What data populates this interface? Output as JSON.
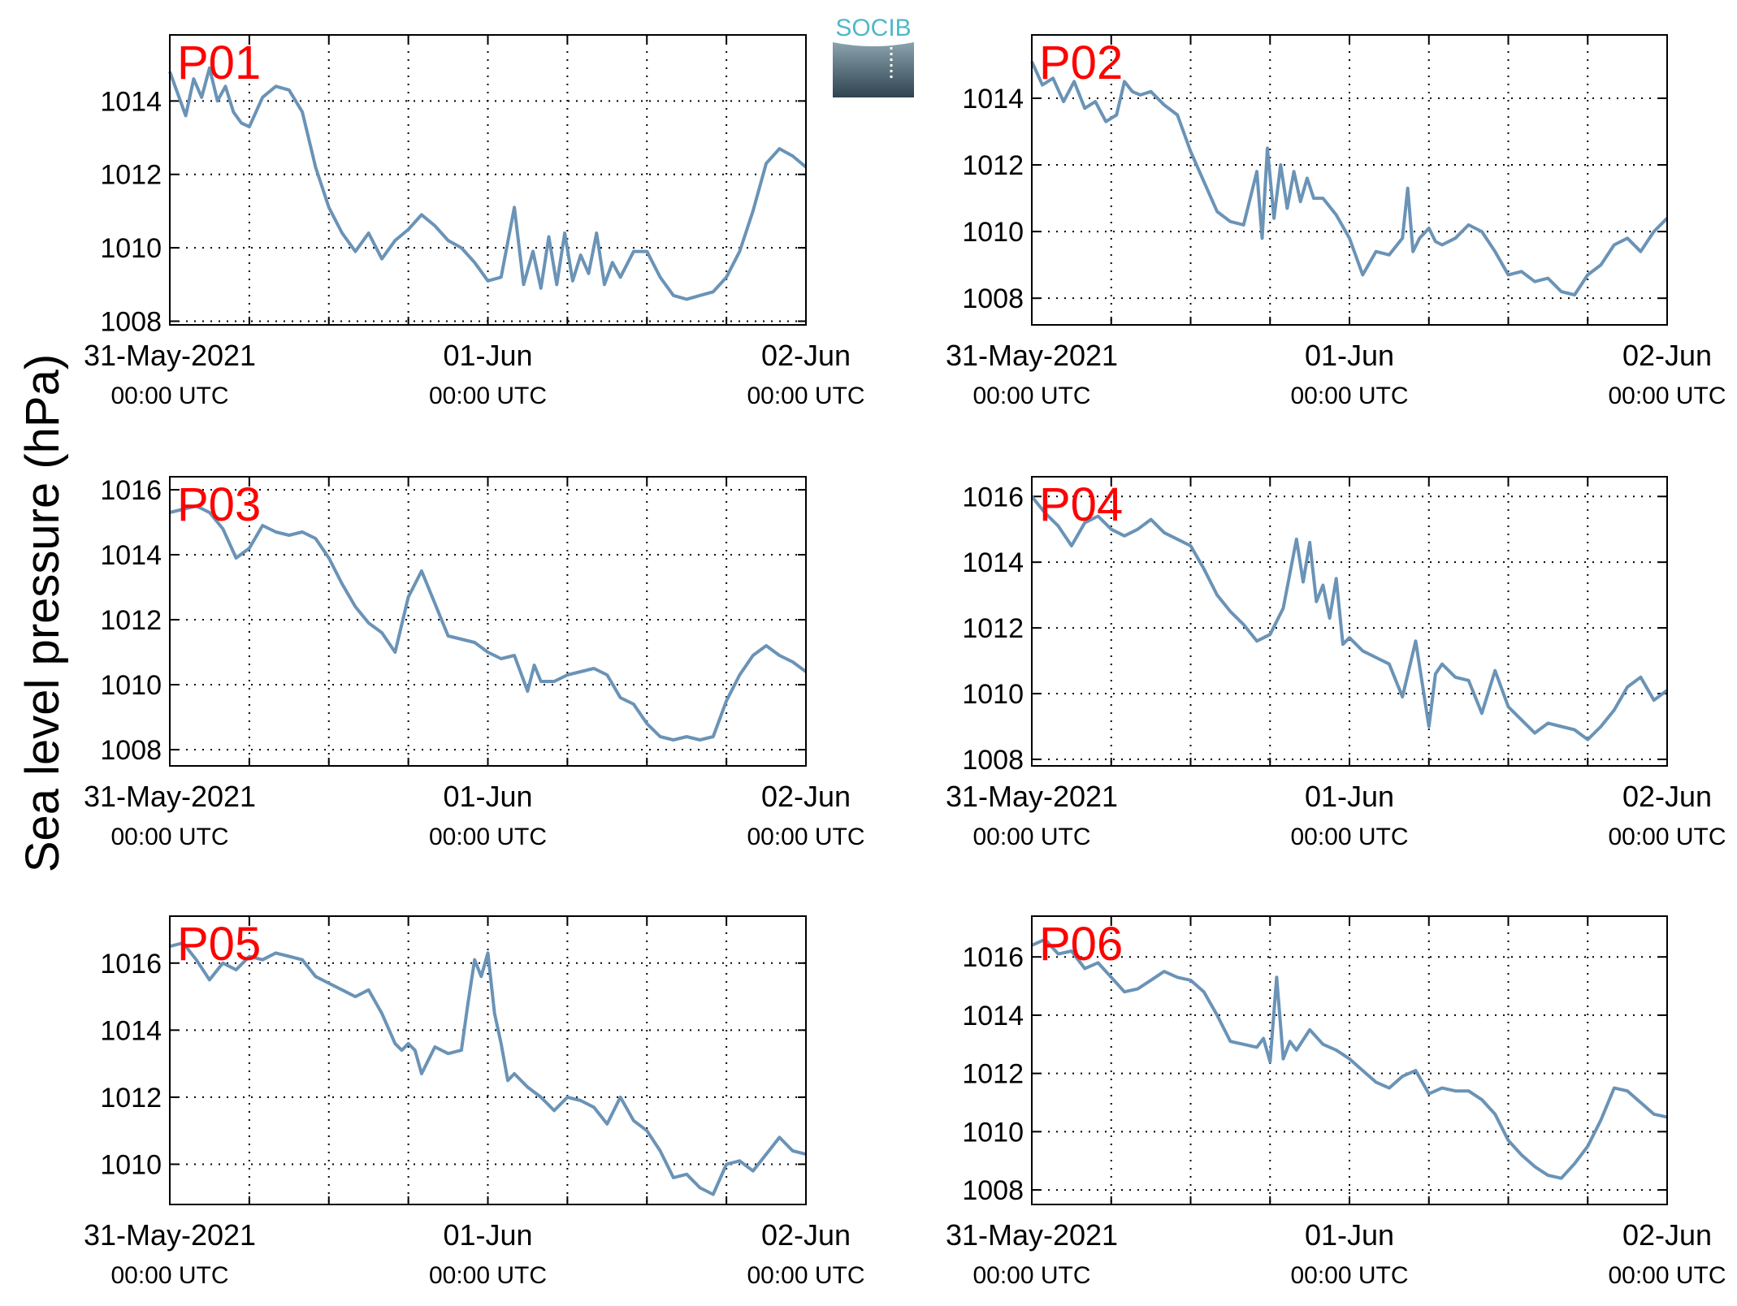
{
  "figure": {
    "ylabel": "Sea level pressure (hPa)",
    "logo_text": "SOCIB",
    "line_color": "#6a93b6",
    "panel_label_color": "#ff0000",
    "x_tick_labels": [
      {
        "top": "31-May-2021",
        "bottom": "00:00 UTC"
      },
      {
        "top": "01-Jun",
        "bottom": "00:00 UTC"
      },
      {
        "top": "02-Jun",
        "bottom": "00:00 UTC"
      }
    ]
  },
  "chart_data": [
    {
      "type": "line",
      "label": "P01",
      "xlim": [
        0,
        48
      ],
      "ylim": [
        1007.9,
        1015.8
      ],
      "yticks": [
        1008,
        1010,
        1012,
        1014
      ],
      "xticks_major": [
        0,
        24,
        48
      ],
      "xgrid": [
        6,
        12,
        18,
        30,
        36,
        42
      ],
      "grid": true,
      "x": [
        0,
        0.6,
        1.2,
        1.8,
        2.4,
        3,
        3.6,
        4.2,
        4.8,
        5.4,
        6,
        7,
        8,
        9,
        10,
        11,
        12,
        13,
        14,
        15,
        16,
        17,
        18,
        19,
        20,
        21,
        22,
        23,
        24,
        25,
        26,
        26.7,
        27.4,
        28,
        28.6,
        29.2,
        29.8,
        30.4,
        31,
        31.6,
        32.2,
        32.8,
        33.4,
        34,
        35,
        36,
        37,
        38,
        39,
        40,
        41,
        42,
        43,
        44,
        45,
        46,
        47,
        48
      ],
      "y": [
        1014.8,
        1014.2,
        1013.6,
        1014.6,
        1014.1,
        1014.9,
        1014.0,
        1014.4,
        1013.7,
        1013.4,
        1013.3,
        1014.1,
        1014.4,
        1014.3,
        1013.7,
        1012.2,
        1011.1,
        1010.4,
        1009.9,
        1010.4,
        1009.7,
        1010.2,
        1010.5,
        1010.9,
        1010.6,
        1010.2,
        1010.0,
        1009.6,
        1009.1,
        1009.2,
        1011.1,
        1009.0,
        1009.9,
        1008.9,
        1010.3,
        1009.0,
        1010.4,
        1009.1,
        1009.8,
        1009.3,
        1010.4,
        1009.0,
        1009.6,
        1009.2,
        1009.9,
        1009.9,
        1009.2,
        1008.7,
        1008.6,
        1008.7,
        1008.8,
        1009.2,
        1009.9,
        1011.0,
        1012.3,
        1012.7,
        1012.5,
        1012.2
      ]
    },
    {
      "type": "line",
      "label": "P02",
      "xlim": [
        0,
        48
      ],
      "ylim": [
        1007.2,
        1015.9
      ],
      "yticks": [
        1008,
        1010,
        1012,
        1014
      ],
      "xticks_major": [
        0,
        24,
        48
      ],
      "xgrid": [
        6,
        12,
        18,
        30,
        36,
        42
      ],
      "grid": true,
      "x": [
        0,
        0.8,
        1.6,
        2.4,
        3.2,
        4,
        4.8,
        5.6,
        6.4,
        7,
        7.6,
        8.2,
        9,
        10,
        11,
        12,
        13,
        14,
        15,
        16,
        17,
        17.4,
        17.8,
        18.3,
        18.8,
        19.3,
        19.8,
        20.3,
        20.8,
        21.3,
        22,
        23,
        24,
        25,
        26,
        27,
        28,
        28.4,
        28.8,
        29.3,
        30,
        30.5,
        31,
        32,
        33,
        34,
        35,
        36,
        37,
        38,
        39,
        40,
        41,
        42,
        43,
        44,
        45,
        46,
        47,
        48
      ],
      "y": [
        1015.1,
        1014.4,
        1014.6,
        1013.9,
        1014.5,
        1013.7,
        1013.9,
        1013.3,
        1013.5,
        1014.5,
        1014.2,
        1014.1,
        1014.2,
        1013.8,
        1013.5,
        1012.4,
        1011.5,
        1010.6,
        1010.3,
        1010.2,
        1011.8,
        1009.8,
        1012.5,
        1010.4,
        1012.0,
        1010.7,
        1011.8,
        1010.9,
        1011.6,
        1011.0,
        1011.0,
        1010.5,
        1009.8,
        1008.7,
        1009.4,
        1009.3,
        1009.8,
        1011.3,
        1009.4,
        1009.8,
        1010.1,
        1009.7,
        1009.6,
        1009.8,
        1010.2,
        1010.0,
        1009.4,
        1008.7,
        1008.8,
        1008.5,
        1008.6,
        1008.2,
        1008.1,
        1008.7,
        1009.0,
        1009.6,
        1009.8,
        1009.4,
        1010.0,
        1010.4
      ]
    },
    {
      "type": "line",
      "label": "P03",
      "xlim": [
        0,
        48
      ],
      "ylim": [
        1007.5,
        1016.4
      ],
      "yticks": [
        1008,
        1010,
        1012,
        1014,
        1016
      ],
      "xticks_major": [
        0,
        24,
        48
      ],
      "xgrid": [
        6,
        12,
        18,
        30,
        36,
        42
      ],
      "grid": true,
      "x": [
        0,
        1,
        2,
        3,
        4,
        5,
        6,
        7,
        8,
        9,
        10,
        11,
        12,
        13,
        14,
        15,
        16,
        17,
        18,
        18.5,
        19,
        20,
        21,
        22,
        23,
        24,
        25,
        26,
        27,
        27.5,
        28,
        29,
        30,
        31,
        32,
        33,
        34,
        35,
        36,
        37,
        38,
        39,
        40,
        41,
        42,
        43,
        44,
        45,
        46,
        47,
        48
      ],
      "y": [
        1015.3,
        1015.4,
        1015.5,
        1015.3,
        1014.8,
        1013.9,
        1014.2,
        1014.9,
        1014.7,
        1014.6,
        1014.7,
        1014.5,
        1013.9,
        1013.1,
        1012.4,
        1011.9,
        1011.6,
        1011.0,
        1012.7,
        1013.1,
        1013.5,
        1012.5,
        1011.5,
        1011.4,
        1011.3,
        1011.0,
        1010.8,
        1010.9,
        1009.8,
        1010.6,
        1010.1,
        1010.1,
        1010.3,
        1010.4,
        1010.5,
        1010.3,
        1009.6,
        1009.4,
        1008.8,
        1008.4,
        1008.3,
        1008.4,
        1008.3,
        1008.4,
        1009.5,
        1010.3,
        1010.9,
        1011.2,
        1010.9,
        1010.7,
        1010.4
      ]
    },
    {
      "type": "line",
      "label": "P04",
      "xlim": [
        0,
        48
      ],
      "ylim": [
        1007.8,
        1016.6
      ],
      "yticks": [
        1008,
        1010,
        1012,
        1014,
        1016
      ],
      "xticks_major": [
        0,
        24,
        48
      ],
      "xgrid": [
        6,
        12,
        18,
        30,
        36,
        42
      ],
      "grid": true,
      "x": [
        0,
        1,
        2,
        3,
        4,
        5,
        6,
        7,
        8,
        9,
        10,
        11,
        12,
        13,
        14,
        15,
        16,
        17,
        18,
        19,
        20,
        20.5,
        21,
        21.5,
        22,
        22.5,
        23,
        23.5,
        24,
        25,
        26,
        27,
        28,
        29,
        30,
        30.5,
        31,
        32,
        33,
        34,
        35,
        36,
        37,
        38,
        39,
        40,
        41,
        42,
        43,
        44,
        45,
        46,
        47,
        48
      ],
      "y": [
        1016.0,
        1015.5,
        1015.1,
        1014.5,
        1015.2,
        1015.4,
        1015.0,
        1014.8,
        1015.0,
        1015.3,
        1014.9,
        1014.7,
        1014.5,
        1013.8,
        1013.0,
        1012.5,
        1012.1,
        1011.6,
        1011.8,
        1012.6,
        1014.7,
        1013.4,
        1014.6,
        1012.8,
        1013.3,
        1012.3,
        1013.5,
        1011.5,
        1011.7,
        1011.3,
        1011.1,
        1010.9,
        1009.9,
        1011.6,
        1009.0,
        1010.6,
        1010.9,
        1010.5,
        1010.4,
        1009.4,
        1010.7,
        1009.6,
        1009.2,
        1008.8,
        1009.1,
        1009.0,
        1008.9,
        1008.6,
        1009.0,
        1009.5,
        1010.2,
        1010.5,
        1009.8,
        1010.1
      ]
    },
    {
      "type": "line",
      "label": "P05",
      "xlim": [
        0,
        48
      ],
      "ylim": [
        1008.8,
        1017.4
      ],
      "yticks": [
        1010,
        1012,
        1014,
        1016
      ],
      "xticks_major": [
        0,
        24,
        48
      ],
      "xgrid": [
        6,
        12,
        18,
        30,
        36,
        42
      ],
      "grid": true,
      "x": [
        0,
        1,
        2,
        3,
        4,
        5,
        6,
        7,
        8,
        9,
        10,
        11,
        12,
        13,
        14,
        15,
        16,
        17,
        17.5,
        18,
        18.5,
        19,
        20,
        21,
        22,
        22.5,
        23,
        23.5,
        24,
        24.5,
        25,
        25.5,
        26,
        27,
        28,
        29,
        30,
        31,
        32,
        33,
        34,
        35,
        36,
        37,
        38,
        39,
        40,
        41,
        42,
        43,
        44,
        45,
        46,
        47,
        48
      ],
      "y": [
        1016.5,
        1016.6,
        1016.1,
        1015.5,
        1016.0,
        1015.8,
        1016.2,
        1016.1,
        1016.3,
        1016.2,
        1016.1,
        1015.6,
        1015.4,
        1015.2,
        1015.0,
        1015.2,
        1014.5,
        1013.6,
        1013.4,
        1013.6,
        1013.4,
        1012.7,
        1013.5,
        1013.3,
        1013.4,
        1014.8,
        1016.1,
        1015.6,
        1016.3,
        1014.5,
        1013.6,
        1012.5,
        1012.7,
        1012.3,
        1012.0,
        1011.6,
        1012.0,
        1011.9,
        1011.7,
        1011.2,
        1012.0,
        1011.3,
        1011.0,
        1010.4,
        1009.6,
        1009.7,
        1009.3,
        1009.1,
        1010.0,
        1010.1,
        1009.8,
        1010.3,
        1010.8,
        1010.4,
        1010.3
      ]
    },
    {
      "type": "line",
      "label": "P06",
      "xlim": [
        0,
        48
      ],
      "ylim": [
        1007.5,
        1017.4
      ],
      "yticks": [
        1008,
        1010,
        1012,
        1014,
        1016
      ],
      "xticks_major": [
        0,
        24,
        48
      ],
      "xgrid": [
        6,
        12,
        18,
        30,
        36,
        42
      ],
      "grid": true,
      "x": [
        0,
        1,
        2,
        3,
        4,
        5,
        6,
        7,
        8,
        9,
        10,
        11,
        12,
        13,
        14,
        15,
        16,
        17,
        17.5,
        18,
        18.5,
        19,
        19.5,
        20,
        21,
        22,
        23,
        24,
        25,
        26,
        27,
        28,
        29,
        30,
        31,
        32,
        33,
        34,
        35,
        36,
        37,
        38,
        39,
        40,
        41,
        42,
        43,
        44,
        45,
        46,
        47,
        48
      ],
      "y": [
        1016.4,
        1016.6,
        1016.1,
        1016.2,
        1015.6,
        1015.8,
        1015.3,
        1014.8,
        1014.9,
        1015.2,
        1015.5,
        1015.3,
        1015.2,
        1014.8,
        1014.0,
        1013.1,
        1013.0,
        1012.9,
        1013.2,
        1012.4,
        1015.3,
        1012.5,
        1013.1,
        1012.8,
        1013.5,
        1013.0,
        1012.8,
        1012.5,
        1012.1,
        1011.7,
        1011.5,
        1011.9,
        1012.1,
        1011.3,
        1011.5,
        1011.4,
        1011.4,
        1011.1,
        1010.6,
        1009.7,
        1009.2,
        1008.8,
        1008.5,
        1008.4,
        1008.9,
        1009.5,
        1010.4,
        1011.5,
        1011.4,
        1011.0,
        1010.6,
        1010.5
      ]
    }
  ]
}
